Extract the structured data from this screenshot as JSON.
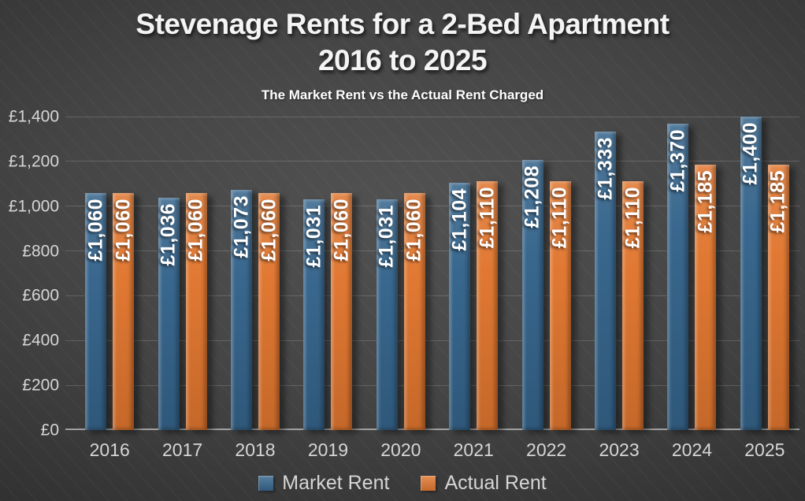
{
  "header": {
    "title_line1": "Stevenage Rents for a 2-Bed Apartment",
    "title_line2": "2016 to 2025",
    "subtitle": "The Market Rent vs the Actual Rent Charged"
  },
  "colors": {
    "market_rent": "#35648B",
    "actual_rent": "#E0762F",
    "background": "#3F3F3F",
    "axis_text": "#D6D6D6",
    "bar_label_text": "#FFFFFF",
    "axis_line": "#9F9F9F"
  },
  "chart_data": {
    "type": "bar",
    "title": "Stevenage Rents for a 2-Bed Apartment 2016 to 2025",
    "subtitle": "The Market Rent vs the Actual Rent Charged",
    "categories": [
      "2016",
      "2017",
      "2018",
      "2019",
      "2020",
      "2021",
      "2022",
      "2023",
      "2024",
      "2025"
    ],
    "series": [
      {
        "name": "Market Rent",
        "color": "#35648B",
        "values": [
          1060,
          1036,
          1073,
          1031,
          1031,
          1104,
          1208,
          1333,
          1370,
          1400
        ],
        "labels": [
          "£1,060",
          "£1,036",
          "£1,073",
          "£1,031",
          "£1,031",
          "£1,104",
          "£1,208",
          "£1,333",
          "£1,370",
          "£1,400"
        ]
      },
      {
        "name": "Actual Rent",
        "color": "#E0762F",
        "values": [
          1060,
          1060,
          1060,
          1060,
          1060,
          1110,
          1110,
          1110,
          1185,
          1185
        ],
        "labels": [
          "£1,060",
          "£1,060",
          "£1,060",
          "£1,060",
          "£1,060",
          "£1,110",
          "£1,110",
          "£1,110",
          "£1,185",
          "£1,185"
        ]
      }
    ],
    "xlabel": "",
    "ylabel": "",
    "ylim": [
      0,
      1400
    ],
    "yticks": [
      {
        "value": 0,
        "label": "£0"
      },
      {
        "value": 200,
        "label": "£200"
      },
      {
        "value": 400,
        "label": "£400"
      },
      {
        "value": 600,
        "label": "£600"
      },
      {
        "value": 800,
        "label": "£800"
      },
      {
        "value": 1000,
        "label": "£1,000"
      },
      {
        "value": 1200,
        "label": "£1,200"
      },
      {
        "value": 1400,
        "label": "£1,400"
      }
    ],
    "grid": true,
    "legend_position": "bottom"
  }
}
